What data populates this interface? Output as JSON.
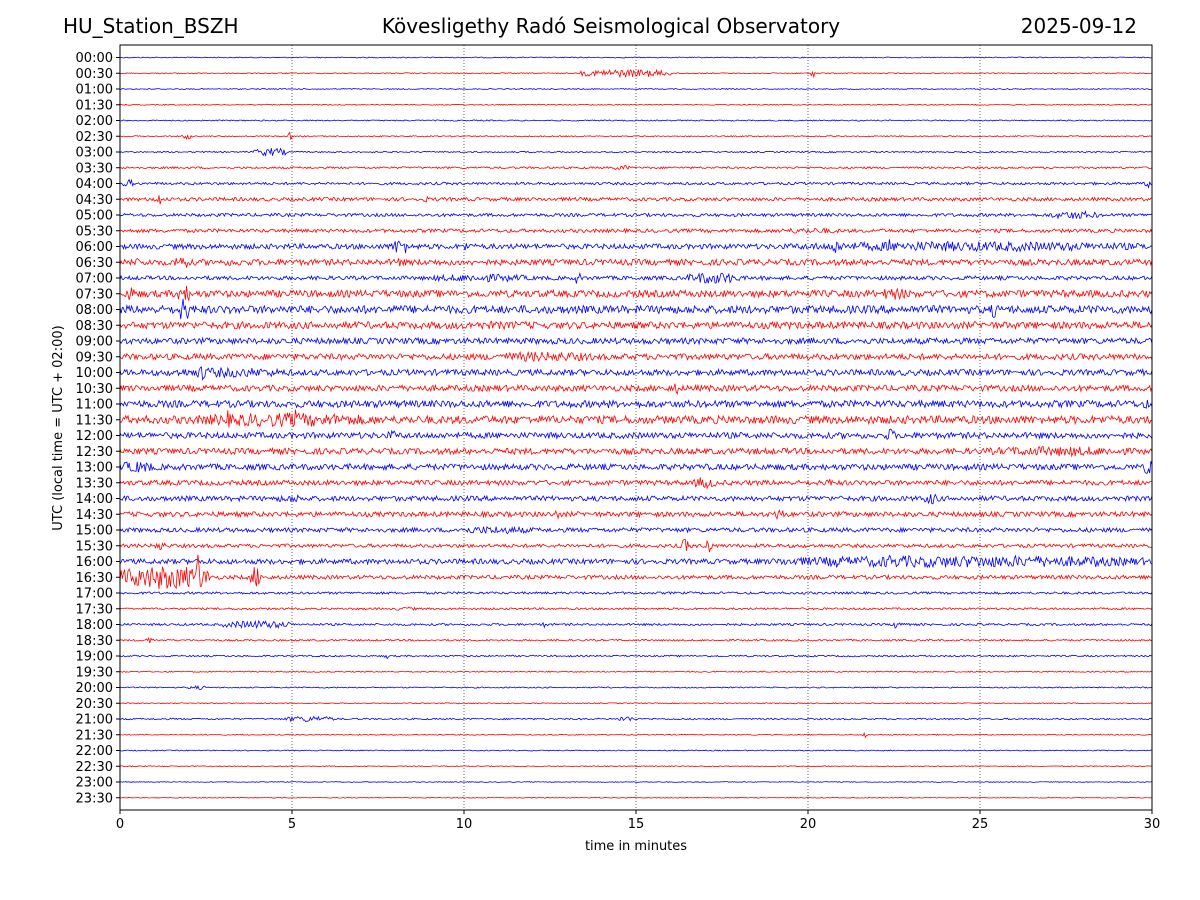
{
  "header": {
    "station": "HU_Station_BSZH",
    "observatory": "Kövesligethy Radó Seismological Observatory",
    "date": "2025-09-12"
  },
  "chart_data": {
    "type": "line",
    "title": "Kövesligethy Radó Seismological Observatory",
    "xlabel": "time in minutes",
    "ylabel": "UTC (local time = UTC + 02:00)",
    "xlim": [
      0,
      30
    ],
    "xticks": [
      0,
      5,
      10,
      15,
      20,
      25,
      30
    ],
    "grid": "vertical dotted lines at x = 5, 10, 15, 20, 25",
    "trace_colors": [
      "#0000ff",
      "#ff0000"
    ],
    "row_labels": [
      "00:00",
      "00:30",
      "01:00",
      "01:30",
      "02:00",
      "02:30",
      "03:00",
      "03:30",
      "04:00",
      "04:30",
      "05:00",
      "05:30",
      "06:00",
      "06:30",
      "07:00",
      "07:30",
      "08:00",
      "08:30",
      "09:00",
      "09:30",
      "10:00",
      "10:30",
      "11:00",
      "11:30",
      "12:00",
      "12:30",
      "13:00",
      "13:30",
      "14:00",
      "14:30",
      "15:00",
      "15:30",
      "16:00",
      "16:30",
      "17:00",
      "17:30",
      "18:00",
      "18:30",
      "19:00",
      "19:30",
      "20:00",
      "20:30",
      "21:00",
      "21:30",
      "22:00",
      "22:30",
      "23:00",
      "23:30"
    ],
    "rows": [
      {
        "noise": 0.5,
        "events": []
      },
      {
        "noise": 0.5,
        "events": [
          [
            13.4,
            16.0,
            4
          ],
          [
            20.1,
            20.2,
            4
          ]
        ]
      },
      {
        "noise": 0.5,
        "events": []
      },
      {
        "noise": 0.5,
        "events": []
      },
      {
        "noise": 0.6,
        "events": []
      },
      {
        "noise": 0.6,
        "events": [
          [
            1.8,
            2.1,
            3
          ],
          [
            4.9,
            5.0,
            4
          ]
        ]
      },
      {
        "noise": 0.7,
        "events": [
          [
            3.9,
            4.9,
            4
          ]
        ]
      },
      {
        "noise": 1.0,
        "events": [
          [
            14.4,
            14.8,
            3
          ]
        ]
      },
      {
        "noise": 1.3,
        "events": [
          [
            0.1,
            0.4,
            4
          ],
          [
            29.8,
            30,
            4
          ]
        ]
      },
      {
        "noise": 1.8,
        "events": [
          [
            1.0,
            1.2,
            8
          ],
          [
            8.8,
            9.0,
            3
          ]
        ]
      },
      {
        "noise": 1.6,
        "events": [
          [
            27.0,
            28.5,
            4
          ]
        ]
      },
      {
        "noise": 1.8,
        "events": [
          [
            19.0,
            21.0,
            3
          ]
        ]
      },
      {
        "noise": 2.6,
        "events": [
          [
            7.9,
            8.4,
            8
          ],
          [
            10.0,
            10.1,
            6
          ],
          [
            19.5,
            30,
            5
          ],
          [
            20.7,
            20.9,
            9
          ],
          [
            22.3,
            22.4,
            9
          ]
        ]
      },
      {
        "noise": 3.0,
        "events": [
          [
            0.0,
            1.0,
            4
          ],
          [
            1.6,
            2.0,
            8
          ],
          [
            3.0,
            3.6,
            4
          ],
          [
            8.0,
            8.2,
            6
          ]
        ]
      },
      {
        "noise": 2.0,
        "events": [
          [
            9.0,
            12.0,
            4
          ],
          [
            13.2,
            13.4,
            6
          ],
          [
            16.5,
            18.0,
            6
          ]
        ]
      },
      {
        "noise": 3.5,
        "events": [
          [
            0.2,
            0.4,
            9
          ],
          [
            1.7,
            2.0,
            11
          ],
          [
            22.0,
            23.0,
            6
          ],
          [
            27.0,
            28.0,
            4
          ]
        ]
      },
      {
        "noise": 4.0,
        "events": [
          [
            1.7,
            2.0,
            13
          ],
          [
            25.3,
            25.5,
            8
          ]
        ]
      },
      {
        "noise": 3.5,
        "events": [
          [
            8.0,
            13.5,
            4
          ]
        ]
      },
      {
        "noise": 3.0,
        "events": []
      },
      {
        "noise": 3.0,
        "events": [
          [
            10.5,
            14.0,
            5
          ]
        ]
      },
      {
        "noise": 3.0,
        "events": [
          [
            1.2,
            5.0,
            5
          ],
          [
            2.3,
            2.5,
            9
          ]
        ]
      },
      {
        "noise": 3.0,
        "events": [
          [
            16.0,
            16.3,
            6
          ]
        ]
      },
      {
        "noise": 3.5,
        "events": [
          [
            6.7,
            6.8,
            6
          ],
          [
            14.1,
            14.2,
            8
          ],
          [
            29.7,
            30,
            5
          ]
        ]
      },
      {
        "noise": 4.0,
        "events": [
          [
            2.0,
            7.5,
            7
          ],
          [
            3.0,
            3.2,
            10
          ],
          [
            5.0,
            5.2,
            11
          ]
        ]
      },
      {
        "noise": 3.0,
        "events": [
          [
            7.8,
            8.0,
            6
          ],
          [
            22.3,
            22.5,
            8
          ]
        ]
      },
      {
        "noise": 3.0,
        "events": [
          [
            25.0,
            29.5,
            5
          ]
        ]
      },
      {
        "noise": 3.0,
        "events": [
          [
            0.0,
            1.0,
            6
          ],
          [
            29.8,
            30,
            9
          ]
        ]
      },
      {
        "noise": 2.5,
        "events": [
          [
            16.7,
            17.3,
            6
          ],
          [
            20.5,
            20.7,
            5
          ]
        ]
      },
      {
        "noise": 2.5,
        "events": [
          [
            4.5,
            5.5,
            4
          ],
          [
            23.4,
            23.8,
            6
          ]
        ]
      },
      {
        "noise": 2.5,
        "events": [
          [
            12.6,
            12.8,
            5
          ],
          [
            19.0,
            19.3,
            6
          ]
        ]
      },
      {
        "noise": 2.2,
        "events": [
          [
            9.7,
            12.0,
            4
          ]
        ]
      },
      {
        "noise": 1.8,
        "events": [
          [
            1.0,
            1.3,
            5
          ],
          [
            16.3,
            16.6,
            7
          ],
          [
            17.0,
            17.2,
            12
          ]
        ]
      },
      {
        "noise": 2.6,
        "events": [
          [
            19.0,
            30,
            6
          ],
          [
            20.7,
            20.9,
            8
          ],
          [
            22.3,
            22.5,
            8
          ],
          [
            28.3,
            28.5,
            8
          ]
        ]
      },
      {
        "noise": 2.0,
        "events": [
          [
            0.0,
            2.6,
            12
          ],
          [
            2.2,
            2.4,
            26
          ],
          [
            3.8,
            4.1,
            11
          ]
        ]
      },
      {
        "noise": 1.2,
        "events": []
      },
      {
        "noise": 1.0,
        "events": [
          [
            8.0,
            8.6,
            2
          ]
        ]
      },
      {
        "noise": 1.1,
        "events": [
          [
            3.0,
            5.0,
            4
          ],
          [
            12.3,
            12.4,
            5
          ],
          [
            22.5,
            22.8,
            5
          ]
        ]
      },
      {
        "noise": 0.9,
        "events": [
          [
            0.7,
            1.0,
            3
          ]
        ]
      },
      {
        "noise": 0.8,
        "events": [
          [
            7.7,
            7.8,
            3
          ]
        ]
      },
      {
        "noise": 0.6,
        "events": []
      },
      {
        "noise": 0.6,
        "events": [
          [
            2.0,
            2.5,
            2
          ]
        ]
      },
      {
        "noise": 0.5,
        "events": []
      },
      {
        "noise": 0.8,
        "events": [
          [
            4.8,
            6.2,
            3
          ],
          [
            14.5,
            14.9,
            3
          ]
        ]
      },
      {
        "noise": 0.5,
        "events": [
          [
            21.6,
            21.7,
            3
          ]
        ]
      },
      {
        "noise": 0.5,
        "events": []
      },
      {
        "noise": 0.5,
        "events": []
      },
      {
        "noise": 0.4,
        "events": []
      },
      {
        "noise": 0.4,
        "events": []
      }
    ]
  }
}
